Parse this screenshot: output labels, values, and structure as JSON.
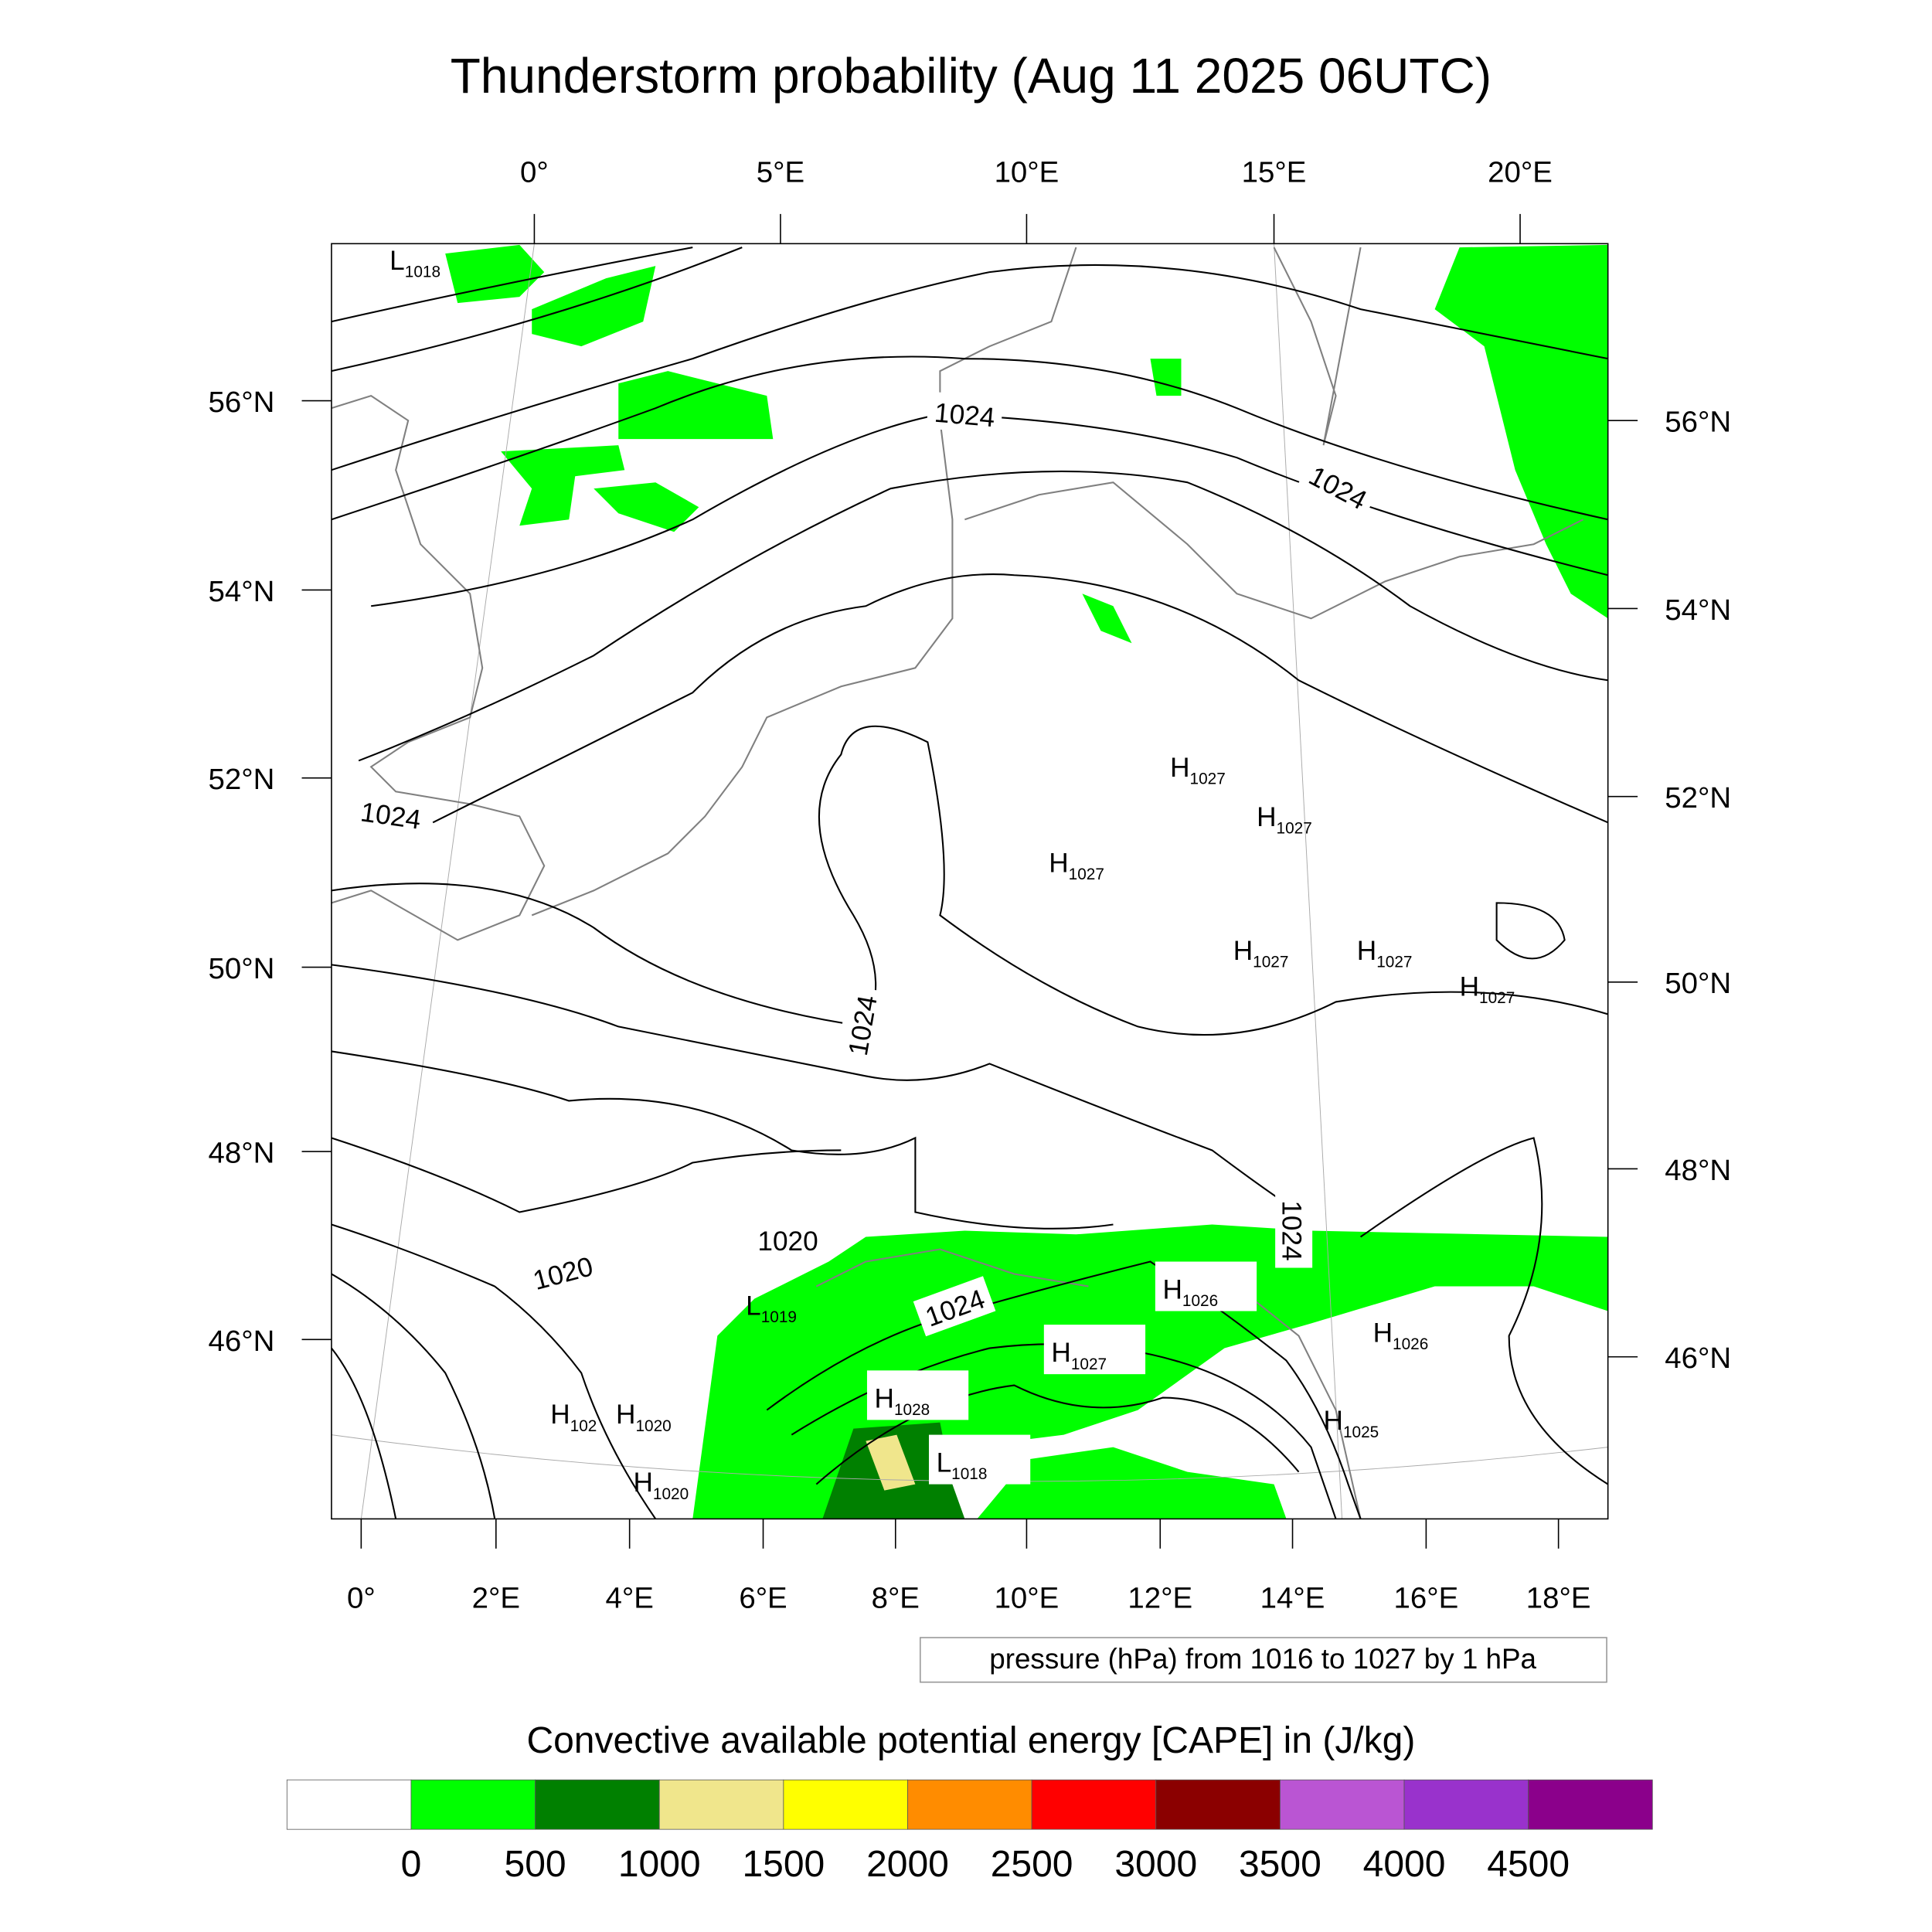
{
  "title": "Thunderstorm probability (Aug 11 2025 06UTC)",
  "top_lon_labels": [
    "0°",
    "5°E",
    "10°E",
    "15°E",
    "20°E"
  ],
  "left_lat_labels": [
    "56°N",
    "54°N",
    "52°N",
    "50°N",
    "48°N",
    "46°N"
  ],
  "right_lat_labels": [
    "56°N",
    "54°N",
    "52°N",
    "50°N",
    "48°N",
    "46°N"
  ],
  "bottom_lon_labels": [
    "0°",
    "2°E",
    "4°E",
    "6°E",
    "8°E",
    "10°E",
    "12°E",
    "14°E",
    "16°E",
    "18°E"
  ],
  "pressure_note": "pressure (hPa) from 1016 to 1027 by 1 hPa",
  "pressure_centers": [
    {
      "type": "L",
      "value": "1018"
    },
    {
      "type": "H",
      "value": "1027"
    },
    {
      "type": "H",
      "value": "1027"
    },
    {
      "type": "H",
      "value": "1027"
    },
    {
      "type": "H",
      "value": "1027"
    },
    {
      "type": "H",
      "value": "1027"
    },
    {
      "type": "H",
      "value": "1027"
    },
    {
      "type": "H",
      "value": "1026"
    },
    {
      "type": "H",
      "value": "1026"
    },
    {
      "type": "H",
      "value": "1027"
    },
    {
      "type": "H",
      "value": "1028"
    },
    {
      "type": "L",
      "value": "1019"
    },
    {
      "type": "H",
      "value": "102"
    },
    {
      "type": "H",
      "value": "1020"
    },
    {
      "type": "H",
      "value": "1020"
    },
    {
      "type": "L",
      "value": "1018"
    },
    {
      "type": "H",
      "value": "1025"
    }
  ],
  "contour_labels": [
    "1024",
    "1024",
    "1024",
    "1024",
    "1024",
    "1020",
    "1020",
    "1024"
  ],
  "colorbar": {
    "title": "Convective available potential energy [CAPE] in (J/kg)",
    "colors": [
      "#ffffff",
      "#00ff00",
      "#008000",
      "#f0e68c",
      "#ffff00",
      "#ff8c00",
      "#ff0000",
      "#8b0000",
      "#ba55d3",
      "#9932cc",
      "#8b008b"
    ],
    "labels": [
      "0",
      "500",
      "1000",
      "1500",
      "2000",
      "2500",
      "3000",
      "3500",
      "4000",
      "4500"
    ]
  }
}
